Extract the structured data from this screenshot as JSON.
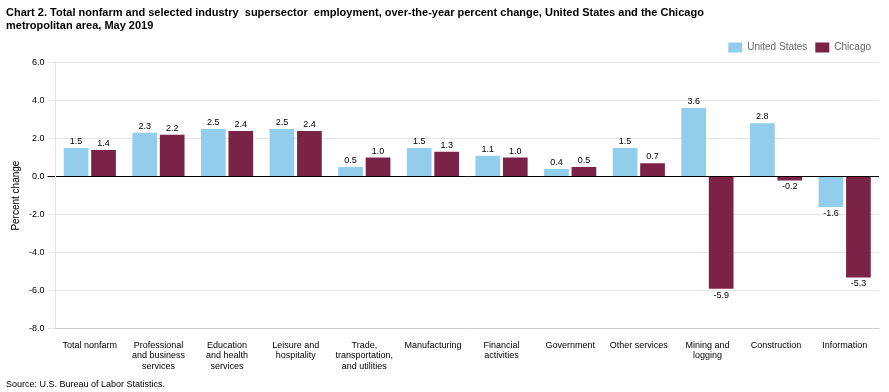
{
  "chart_data": {
    "type": "bar",
    "title": "Chart 2. Total nonfarm and selected industry  supersector  employment, over-the-year percent change, United States and the Chicago\nmetropolitan area, May 2019",
    "ylabel": "Percent change",
    "annotations": [
      "Source: U.S. Bureau of Labor Statistics."
    ],
    "categories": [
      "Total nonfarm",
      "Professional\nand business\nservices",
      "Education\nand health\nservices",
      "Leisure and\nhospitality",
      "Trade,\ntransportation,\nand utilities",
      "Manufacturing",
      "Financial\nactivities",
      "Government",
      "Other services",
      "Mining and\nlogging",
      "Construction",
      "Information"
    ],
    "series": [
      {
        "name": "United States",
        "color": "#92CDEB",
        "values": [
          1.5,
          2.3,
          2.5,
          2.5,
          0.5,
          1.5,
          1.1,
          0.4,
          1.5,
          3.6,
          2.8,
          -1.6
        ],
        "value_labels": [
          "1.5",
          "2.3",
          "2.5",
          "2.5",
          "0.5",
          "1.5",
          "1.1",
          "0.4",
          "1.5",
          "3.6",
          "2.8",
          "-1.6"
        ]
      },
      {
        "name": "Chicago",
        "color": "#7B2346",
        "values": [
          1.4,
          2.2,
          2.4,
          2.4,
          1.0,
          1.3,
          1.0,
          0.5,
          0.7,
          -5.9,
          -0.2,
          -5.3
        ],
        "value_labels": [
          "1.4",
          "2.2",
          "2.4",
          "2.4",
          "1.0",
          "1.3",
          "1.0",
          "0.5",
          "0.7",
          "-5.9",
          "-0.2",
          "-5.3"
        ]
      }
    ],
    "ylim": [
      -8.0,
      6.0
    ],
    "yticks": [
      {
        "value": -8,
        "label": "-8.0"
      },
      {
        "value": -6,
        "label": "-6.0"
      },
      {
        "value": -4,
        "label": "-4.0"
      },
      {
        "value": -2,
        "label": "-2.0"
      },
      {
        "value": 0,
        "label": "0.0"
      },
      {
        "value": 2,
        "label": "2.0"
      },
      {
        "value": 4,
        "label": "4.0"
      },
      {
        "value": 6,
        "label": "6.0"
      }
    ],
    "grid": true,
    "legend": "upper right",
    "data_labels": true
  }
}
